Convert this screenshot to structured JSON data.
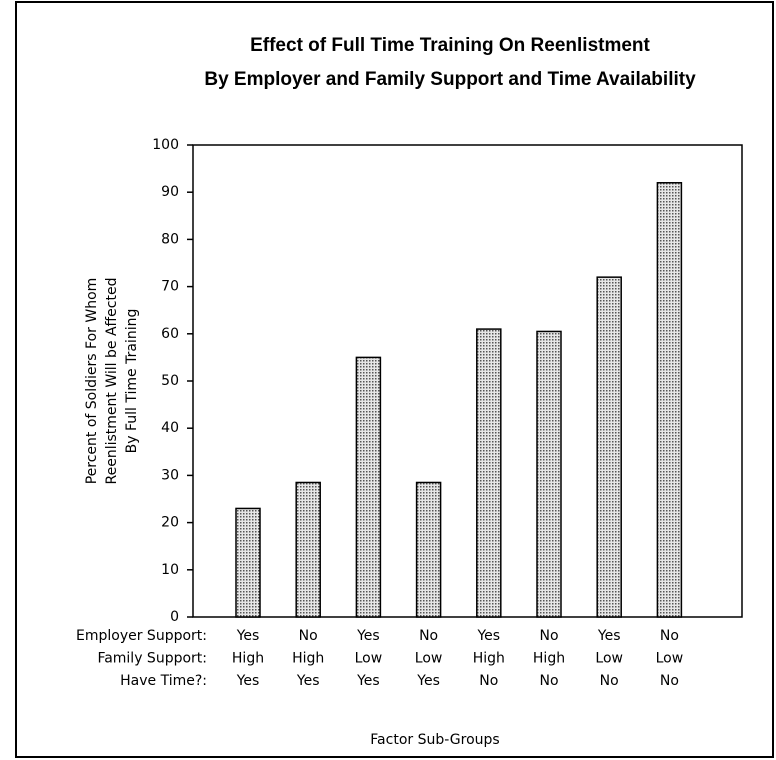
{
  "chart_data": {
    "type": "bar",
    "title": [
      "Effect of Full Time Training On Reenlistment",
      "By Employer and Family Support and Time Availability"
    ],
    "y_label": [
      "Percent of Soldiers For Whom",
      "Reenlistment Will be Affected",
      "By Full Time Training"
    ],
    "x_label": "Factor Sub-Groups",
    "factors": [
      {
        "name": "Employer Support:",
        "levels": [
          "Yes",
          "No",
          "Yes",
          "No",
          "Yes",
          "No",
          "Yes",
          "No"
        ]
      },
      {
        "name": "Family Support:",
        "levels": [
          "High",
          "High",
          "Low",
          "Low",
          "High",
          "High",
          "Low",
          "Low"
        ]
      },
      {
        "name": "Have Time?:",
        "levels": [
          "Yes",
          "Yes",
          "Yes",
          "Yes",
          "No",
          "No",
          "No",
          "No"
        ]
      }
    ],
    "values": [
      23,
      28.5,
      55,
      28.5,
      61,
      60.5,
      72,
      92
    ],
    "color": "#c4c4c4",
    "ylim": [
      0,
      100
    ],
    "yticks": [
      0,
      10,
      20,
      30,
      40,
      50,
      60,
      70,
      80,
      90,
      100
    ]
  }
}
